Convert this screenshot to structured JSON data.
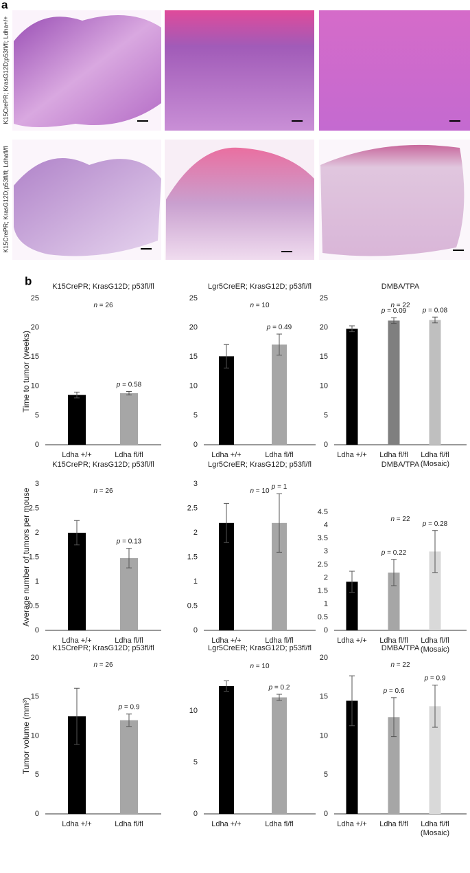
{
  "panel_a": {
    "label": "a",
    "row_labels": [
      "K15CrePR; KrasG12D;p53fl/fl; Ldha+/+",
      "K15CrePR; KrasG12D;p53fl/fl; Ldhafl/fl"
    ]
  },
  "panel_b": {
    "label": "b"
  },
  "chart_data": [
    {
      "type": "bar",
      "title": "K15CrePR; KrasG12D; p53fl/fl",
      "ylabel": "Time to tumor (weeks)",
      "n_label": "n = 26",
      "categories": [
        "Ldha +/+",
        "Ldha fl/fl"
      ],
      "values": [
        8.5,
        8.8
      ],
      "errors": [
        0.5,
        0.3
      ],
      "colors": [
        "#000000",
        "#a6a6a6"
      ],
      "p_labels": [
        null,
        "p = 0.58"
      ],
      "ylim": [
        0,
        25
      ],
      "yticks": [
        0,
        5,
        10,
        15,
        20,
        25
      ]
    },
    {
      "type": "bar",
      "title": "Lgr5CreER; KrasG12D; p53fl/fl",
      "n_label": "n = 10",
      "categories": [
        "Ldha +/+",
        "Ldha fl/fl"
      ],
      "values": [
        15.1,
        17.1
      ],
      "errors": [
        2.0,
        1.8
      ],
      "colors": [
        "#000000",
        "#a6a6a6"
      ],
      "p_labels": [
        null,
        "p = 0.49"
      ],
      "ylim": [
        0,
        25
      ],
      "yticks": [
        0,
        5,
        10,
        15,
        20,
        25
      ]
    },
    {
      "type": "bar",
      "title": "DMBA/TPA",
      "n_label": "n = 22",
      "categories": [
        "Ldha +/+",
        "Ldha fl/fl",
        "Ldha fl/fl\n(Mosaic)"
      ],
      "values": [
        19.8,
        21.2,
        21.3
      ],
      "errors": [
        0.5,
        0.5,
        0.5
      ],
      "colors": [
        "#000000",
        "#7f7f7f",
        "#bfbfbf"
      ],
      "p_labels": [
        null,
        "p = 0.09",
        "p = 0.08"
      ],
      "ylim": [
        0,
        25
      ],
      "yticks": [
        0,
        5,
        10,
        15,
        20,
        25
      ]
    },
    {
      "type": "bar",
      "title": "K15CrePR; KrasG12D; p53fl/fl",
      "ylabel": "Average number of tumors per mouse",
      "n_label": "n = 26",
      "categories": [
        "Ldha +/+",
        "Ldha fl/fl"
      ],
      "values": [
        2.0,
        1.48
      ],
      "errors": [
        0.25,
        0.2
      ],
      "colors": [
        "#000000",
        "#a6a6a6"
      ],
      "p_labels": [
        null,
        "p = 0.13"
      ],
      "ylim": [
        0,
        3
      ],
      "yticks": [
        0,
        0.5,
        1,
        1.5,
        2,
        2.5,
        3
      ]
    },
    {
      "type": "bar",
      "title": "Lgr5CreER; KrasG12D; p53fl/fl",
      "n_label": "n = 10",
      "categories": [
        "Ldha +/+",
        "Ldha fl/fl"
      ],
      "values": [
        2.2,
        2.2
      ],
      "errors": [
        0.4,
        0.6
      ],
      "colors": [
        "#000000",
        "#a6a6a6"
      ],
      "p_labels": [
        null,
        "p = 1"
      ],
      "ylim": [
        0,
        3
      ],
      "yticks": [
        0,
        0.5,
        1,
        1.5,
        2,
        2.5,
        3
      ]
    },
    {
      "type": "bar",
      "title": "DMBA/TPA",
      "n_label": "n = 22",
      "categories": [
        "Ldha +/+",
        "Ldha fl/fl",
        "Ldha fl/fl\n(Mosaic)"
      ],
      "values": [
        1.85,
        2.2,
        3.0
      ],
      "errors": [
        0.4,
        0.5,
        0.8
      ],
      "colors": [
        "#000000",
        "#a6a6a6",
        "#d9d9d9"
      ],
      "p_labels": [
        null,
        "p = 0.22",
        "p = 0.28"
      ],
      "ylim": [
        0,
        4.5
      ],
      "yticks": [
        0,
        0.5,
        1,
        1.5,
        2,
        2.5,
        3,
        3.5,
        4,
        4.5
      ]
    },
    {
      "type": "bar",
      "title": "K15CrePR; KrasG12D; p53fl/fl",
      "ylabel": "Tumor volume (mm³)",
      "n_label": "n = 26",
      "categories": [
        "Ldha +/+",
        "Ldha fl/fl"
      ],
      "values": [
        12.5,
        12.0
      ],
      "errors": [
        3.6,
        0.8
      ],
      "colors": [
        "#000000",
        "#a6a6a6"
      ],
      "p_labels": [
        null,
        "p = 0.9"
      ],
      "ylim": [
        0,
        20
      ],
      "yticks": [
        0,
        5,
        10,
        15,
        20
      ]
    },
    {
      "type": "bar",
      "title": "Lgr5CreER; KrasG12D; p53fl/fl",
      "n_label": "n = 10",
      "categories": [
        "Ldha +/+",
        "Ldha fl/fl"
      ],
      "values": [
        12.4,
        11.3
      ],
      "errors": [
        0.5,
        0.3
      ],
      "colors": [
        "#000000",
        "#a6a6a6"
      ],
      "p_labels": [
        null,
        "p = 0.2"
      ],
      "ylim": [
        0,
        15
      ],
      "yticks": [
        0,
        5,
        10
      ]
    },
    {
      "type": "bar",
      "title": "DMBA/TPA",
      "n_label": "n = 22",
      "categories": [
        "Ldha +/+",
        "Ldha fl/fl",
        "Ldha fl/fl\n(Mosaic)"
      ],
      "values": [
        14.5,
        12.4,
        13.8
      ],
      "errors": [
        3.2,
        2.5,
        2.7
      ],
      "colors": [
        "#000000",
        "#a6a6a6",
        "#d9d9d9"
      ],
      "p_labels": [
        null,
        "p = 0.6",
        "p = 0.9"
      ],
      "ylim": [
        0,
        20
      ],
      "yticks": [
        0,
        5,
        10,
        15,
        20
      ]
    }
  ]
}
